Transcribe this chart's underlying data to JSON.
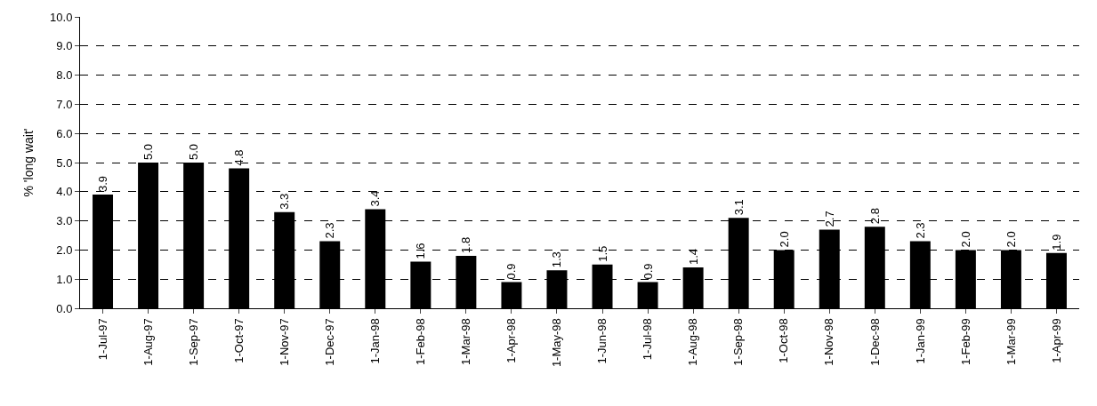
{
  "chart_data": {
    "type": "bar",
    "ylabel": "% 'long wait'",
    "categories": [
      "1-Jul-97",
      "1-Aug-97",
      "1-Sep-97",
      "1-Oct-97",
      "1-Nov-97",
      "1-Dec-97",
      "1-Jan-98",
      "1-Feb-98",
      "1-Mar-98",
      "1-Apr-98",
      "1-May-98",
      "1-Jun-98",
      "1-Jul-98",
      "1-Aug-98",
      "1-Sep-98",
      "1-Oct-98",
      "1-Nov-98",
      "1-Dec-98",
      "1-Jan-99",
      "1-Feb-99",
      "1-Mar-99",
      "1-Apr-99"
    ],
    "values": [
      3.9,
      5.0,
      5.0,
      4.8,
      3.3,
      2.3,
      3.4,
      1.6,
      1.8,
      0.9,
      1.3,
      1.5,
      0.9,
      1.4,
      3.1,
      2.0,
      2.7,
      2.8,
      2.3,
      2.0,
      2.0,
      1.9
    ],
    "value_labels": [
      "3.9",
      "5.0",
      "5.0",
      "4.8",
      "3.3",
      "2.3",
      "3.4",
      "1.6",
      "1.8",
      "0.9",
      "1.3",
      "1.5",
      "0.9",
      "1.4",
      "3.1",
      "2.0",
      "2.7",
      "2.8",
      "2.3",
      "2.0",
      "2.0",
      "1.9"
    ],
    "color": "#000000",
    "grid": "y",
    "ylim": [
      0,
      10
    ],
    "yticks": [
      {
        "value": 0,
        "label": "0.0"
      },
      {
        "value": 1,
        "label": "1.0"
      },
      {
        "value": 2,
        "label": "2.0"
      },
      {
        "value": 3,
        "label": "3.0"
      },
      {
        "value": 4,
        "label": "4.0"
      },
      {
        "value": 5,
        "label": "5.0"
      },
      {
        "value": 6,
        "label": "6.0"
      },
      {
        "value": 7,
        "label": "7.0"
      },
      {
        "value": 8,
        "label": "8.0"
      },
      {
        "value": 9,
        "label": "9.0"
      },
      {
        "value": 10,
        "label": "10.0"
      }
    ]
  }
}
